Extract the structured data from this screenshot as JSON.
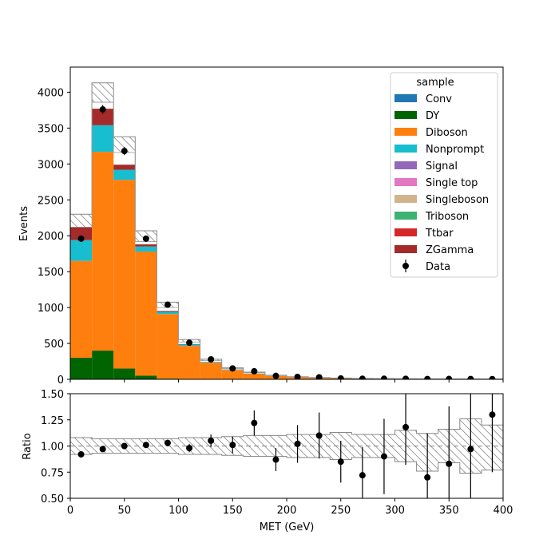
{
  "chart_data": {
    "type": "bar",
    "stacked": true,
    "x_edges": [
      0,
      20,
      40,
      60,
      80,
      100,
      120,
      140,
      160,
      180,
      200,
      220,
      240,
      260,
      280,
      300,
      320,
      340,
      360,
      380,
      400
    ],
    "xlabel": "MET (GeV)",
    "main": {
      "ylabel": "Events",
      "xlim": [
        0,
        400
      ],
      "ylim": [
        0,
        4350
      ],
      "yticks": [
        0,
        500,
        1000,
        1500,
        2000,
        2500,
        3000,
        3500,
        4000
      ],
      "series": [
        {
          "name": "DY",
          "color": "#006400",
          "values": [
            300,
            400,
            150,
            50,
            10,
            5,
            2,
            1,
            0,
            0,
            0,
            0,
            0,
            0,
            0,
            0,
            0,
            0,
            0,
            0
          ]
        },
        {
          "name": "Diboson",
          "color": "#ff7f0e",
          "values": [
            1350,
            2770,
            2630,
            1730,
            900,
            460,
            230,
            130,
            80,
            45,
            28,
            20,
            14,
            10,
            8,
            6,
            5,
            4,
            3,
            3
          ]
        },
        {
          "name": "Nonprompt",
          "color": "#17becf",
          "values": [
            290,
            370,
            140,
            70,
            30,
            20,
            8,
            5,
            3,
            2,
            1,
            1,
            1,
            0,
            0,
            0,
            0,
            0,
            0,
            0
          ]
        },
        {
          "name": "ZGamma",
          "color": "#a52a2a",
          "values": [
            180,
            230,
            70,
            30,
            12,
            5,
            2,
            1,
            0,
            0,
            0,
            0,
            0,
            0,
            0,
            0,
            0,
            0,
            0,
            0
          ]
        }
      ],
      "mc_total": [
        2120,
        3860,
        3160,
        1920,
        1000,
        520,
        260,
        148,
        93,
        52,
        33,
        23,
        16,
        11,
        9,
        7,
        6,
        5,
        4,
        3
      ],
      "unc_total": [
        2300,
        4130,
        3380,
        2070,
        1075,
        555,
        280,
        160,
        100,
        57,
        36,
        25,
        18,
        13,
        10,
        8,
        7,
        6,
        5,
        4
      ],
      "data": {
        "name": "Data",
        "x": [
          10,
          30,
          50,
          70,
          90,
          110,
          130,
          150,
          170,
          190,
          210,
          230,
          250,
          270,
          290,
          310,
          330,
          350,
          370,
          390
        ],
        "y": [
          1960,
          3760,
          3180,
          1960,
          1040,
          510,
          278,
          152,
          112,
          48,
          34,
          28,
          12,
          8,
          8,
          7,
          4,
          5,
          4,
          3
        ],
        "err": [
          44,
          61,
          56,
          44,
          32,
          23,
          17,
          12,
          11,
          7,
          6,
          5,
          3,
          3,
          3,
          3,
          2,
          2,
          2,
          2
        ]
      },
      "legend": {
        "title": "sample",
        "placement": "top-right",
        "entries": [
          {
            "name": "Conv",
            "color": "#1f77b4",
            "kind": "patch"
          },
          {
            "name": "DY",
            "color": "#006400",
            "kind": "patch"
          },
          {
            "name": "Diboson",
            "color": "#ff7f0e",
            "kind": "patch"
          },
          {
            "name": "Nonprompt",
            "color": "#17becf",
            "kind": "patch"
          },
          {
            "name": "Signal",
            "color": "#9467bd",
            "kind": "patch"
          },
          {
            "name": "Single top",
            "color": "#e377c2",
            "kind": "patch"
          },
          {
            "name": "Singleboson",
            "color": "#d2b48c",
            "kind": "patch"
          },
          {
            "name": "Triboson",
            "color": "#3cb371",
            "kind": "patch"
          },
          {
            "name": "Ttbar",
            "color": "#d62728",
            "kind": "patch"
          },
          {
            "name": "ZGamma",
            "color": "#a52a2a",
            "kind": "patch"
          },
          {
            "name": "Data",
            "color": "#000000",
            "kind": "errorbar"
          }
        ]
      }
    },
    "ratio": {
      "ylabel": "Ratio",
      "xlim": [
        0,
        400
      ],
      "ylim": [
        0.5,
        1.5
      ],
      "yticks": [
        0.5,
        0.75,
        1.0,
        1.25,
        1.5
      ],
      "ytick_labels": [
        "0.50",
        "0.75",
        "1.00",
        "1.25",
        "1.50"
      ],
      "unc_lo": [
        0.92,
        0.93,
        0.93,
        0.93,
        0.93,
        0.92,
        0.92,
        0.91,
        0.9,
        0.9,
        0.89,
        0.89,
        0.87,
        0.89,
        0.89,
        0.85,
        0.76,
        0.84,
        0.74,
        0.77
      ],
      "unc_hi": [
        1.08,
        1.07,
        1.07,
        1.07,
        1.07,
        1.08,
        1.08,
        1.09,
        1.1,
        1.1,
        1.11,
        1.11,
        1.13,
        1.11,
        1.11,
        1.15,
        1.12,
        1.16,
        1.26,
        1.2
      ],
      "points": {
        "x": [
          10,
          30,
          50,
          70,
          90,
          110,
          130,
          150,
          170,
          190,
          210,
          230,
          250,
          270,
          290,
          310,
          330,
          350,
          370,
          390
        ],
        "y": [
          0.92,
          0.97,
          1.0,
          1.01,
          1.03,
          0.98,
          1.05,
          1.01,
          1.22,
          0.87,
          1.02,
          1.1,
          0.85,
          0.72,
          0.9,
          1.18,
          0.7,
          0.83,
          0.97,
          1.3
        ],
        "err": [
          0.02,
          0.02,
          0.02,
          0.02,
          0.03,
          0.04,
          0.06,
          0.08,
          0.12,
          0.11,
          0.18,
          0.22,
          0.2,
          0.27,
          0.36,
          0.36,
          0.42,
          0.55,
          0.55,
          0.55
        ]
      }
    },
    "xticks": [
      0,
      50,
      100,
      150,
      200,
      250,
      300,
      350,
      400
    ]
  }
}
